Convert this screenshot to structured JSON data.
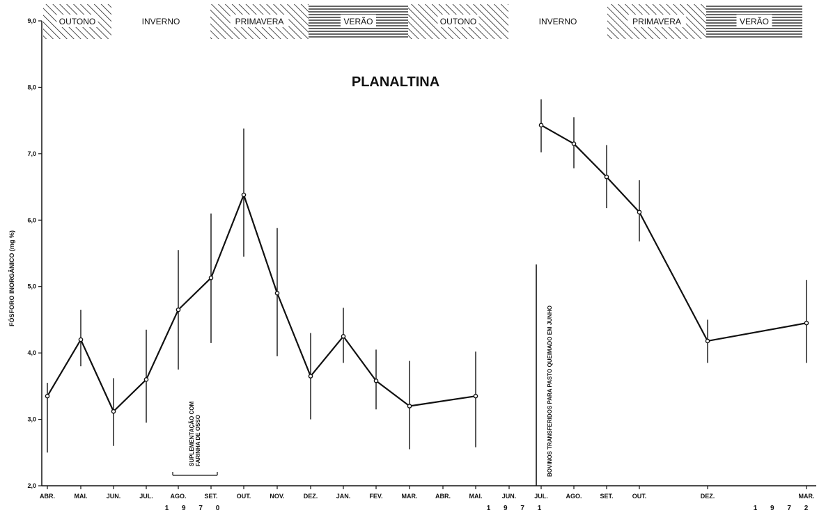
{
  "chart_data": {
    "type": "line",
    "title": "PLANALTINA",
    "ylabel": "FÓSFORO INORGÂNICO (mg %)",
    "ylim": [
      2.0,
      9.0
    ],
    "yticks": [
      "2,0",
      "3,0",
      "4,0",
      "5,0",
      "6,0",
      "7,0",
      "8,0",
      "9,0"
    ],
    "grid": false,
    "x_labels": [
      "ABR.",
      "MAI.",
      "JUN.",
      "JUL.",
      "AGO.",
      "SET.",
      "OUT.",
      "NOV.",
      "DEZ.",
      "JAN.",
      "FEV.",
      "MAR.",
      "ABR.",
      "MAI.",
      "JUN.",
      "JUL.",
      "AGO.",
      "SET.",
      "OUT.",
      "DEZ.",
      "MAR."
    ],
    "years": [
      "1 9 7 0",
      "1 9 7 1",
      "1 9 7 2"
    ],
    "seasons": [
      {
        "label": "OUTONO",
        "pattern": "diagonal"
      },
      {
        "label": "INVERNO",
        "pattern": "none"
      },
      {
        "label": "PRIMAVERA",
        "pattern": "diagonal"
      },
      {
        "label": "VERÃO",
        "pattern": "horizontal"
      },
      {
        "label": "OUTONO",
        "pattern": "diagonal"
      },
      {
        "label": "INVERNO",
        "pattern": "none"
      },
      {
        "label": "PRIMAVERA",
        "pattern": "diagonal"
      },
      {
        "label": "VERÃO",
        "pattern": "horizontal"
      }
    ],
    "series": [
      {
        "points": [
          {
            "x": "ABR. 1970",
            "y": 3.35,
            "low": 2.5,
            "high": 3.55
          },
          {
            "x": "MAI. 1970",
            "y": 4.2,
            "low": 3.8,
            "high": 4.65
          },
          {
            "x": "JUN. 1970",
            "y": 3.12,
            "low": 2.6,
            "high": 3.62
          },
          {
            "x": "JUL. 1970",
            "y": 3.6,
            "low": 2.95,
            "high": 4.35
          },
          {
            "x": "AGO. 1970",
            "y": 4.65,
            "low": 3.75,
            "high": 5.55
          },
          {
            "x": "SET. 1970",
            "y": 5.13,
            "low": 4.15,
            "high": 6.1
          },
          {
            "x": "OUT. 1970",
            "y": 6.38,
            "low": 5.45,
            "high": 7.38
          },
          {
            "x": "NOV. 1970",
            "y": 4.9,
            "low": 3.95,
            "high": 5.88
          },
          {
            "x": "DEZ. 1970",
            "y": 3.65,
            "low": 3.0,
            "high": 4.3
          },
          {
            "x": "JAN. 1971",
            "y": 4.25,
            "low": 3.85,
            "high": 4.68
          },
          {
            "x": "FEV. 1971",
            "y": 3.58,
            "low": 3.15,
            "high": 4.05
          },
          {
            "x": "MAR. 1971",
            "y": 3.2,
            "low": 2.55,
            "high": 3.88
          },
          {
            "x": "MAI. 1971",
            "y": 3.35,
            "low": 2.58,
            "high": 4.02
          }
        ]
      },
      {
        "points": [
          {
            "x": "JUL. 1971",
            "y": 7.43,
            "low": 7.02,
            "high": 7.82
          },
          {
            "x": "AGO. 1971",
            "y": 7.15,
            "low": 6.78,
            "high": 7.55
          },
          {
            "x": "SET. 1971",
            "y": 6.65,
            "low": 6.18,
            "high": 7.13
          },
          {
            "x": "OUT. 1971",
            "y": 6.12,
            "low": 5.68,
            "high": 6.6
          },
          {
            "x": "DEZ. 1971",
            "y": 4.18,
            "low": 3.85,
            "high": 4.5
          },
          {
            "x": "MAR. 1972",
            "y": 4.45,
            "low": 3.85,
            "high": 5.1
          }
        ]
      }
    ],
    "annotations": [
      {
        "text_lines": [
          "SUPLEMENTAÇÃO COM",
          "FARINHA DE OSSO"
        ]
      },
      {
        "text_lines": [
          "BOVINOS TRANSFERIDOS PARA PASTO QUEIMADO EM JUNHO"
        ]
      }
    ]
  }
}
